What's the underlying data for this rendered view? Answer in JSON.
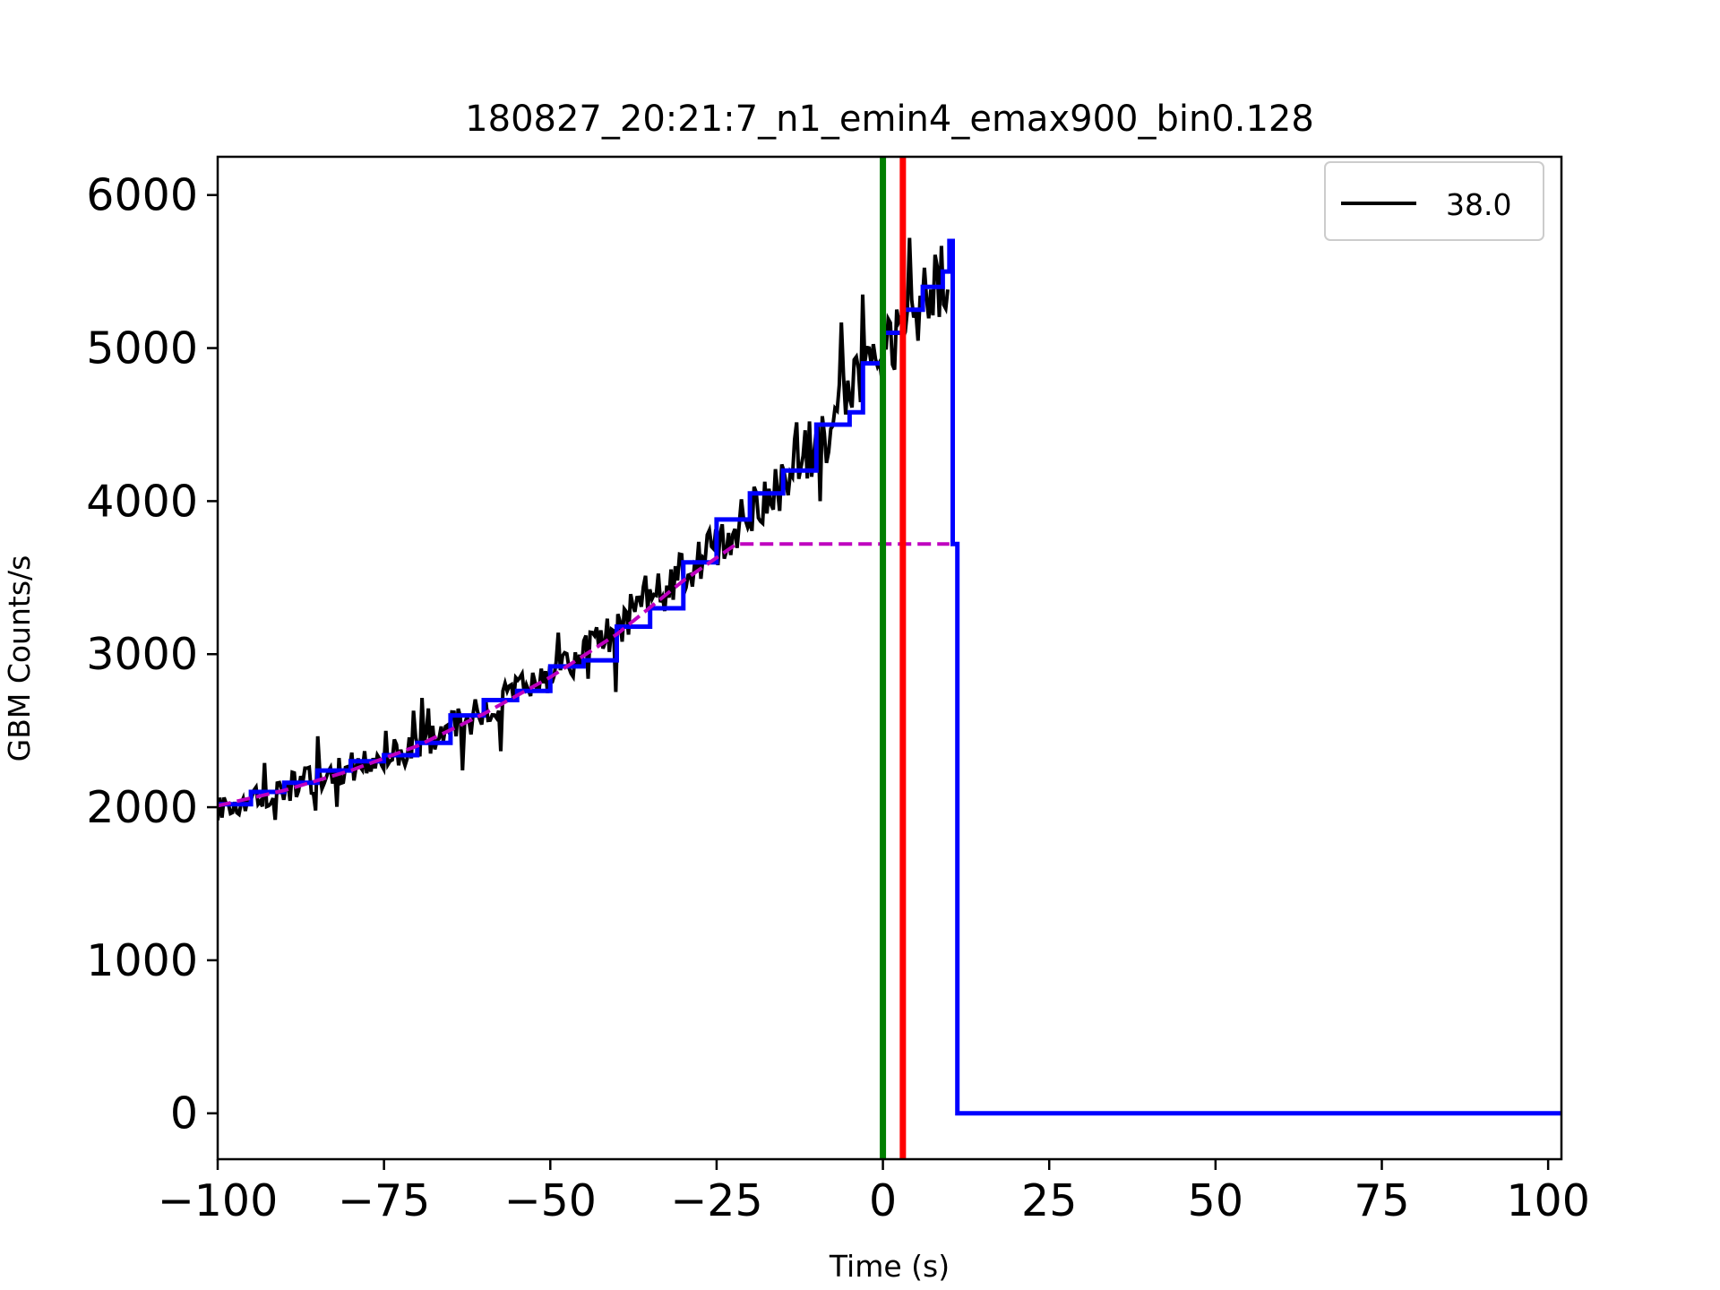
{
  "chart_data": {
    "type": "line",
    "title": "180827_20:21:7_n1_emin4_emax900_bin0.128",
    "xlabel": "Time (s)",
    "ylabel": "GBM Counts/s",
    "xlim": [
      -100,
      102
    ],
    "ylim": [
      -300,
      6250
    ],
    "xticks": [
      -100,
      -75,
      -50,
      -25,
      0,
      25,
      50,
      75,
      100
    ],
    "xtick_labels": [
      "−100",
      "−75",
      "−50",
      "−25",
      "0",
      "25",
      "50",
      "75",
      "100"
    ],
    "yticks": [
      0,
      1000,
      2000,
      3000,
      4000,
      5000,
      6000
    ],
    "ytick_labels": [
      "0",
      "1000",
      "2000",
      "3000",
      "4000",
      "5000",
      "6000"
    ],
    "legend": {
      "position": "top-right",
      "entries": [
        {
          "label": "38.0",
          "color": "#000000"
        }
      ]
    },
    "vlines": [
      {
        "x": 0,
        "color": "#007f00"
      },
      {
        "x": 3,
        "color": "#ff0000"
      }
    ],
    "series": [
      {
        "name": "38.0",
        "style": "noisy-step",
        "color": "#000000",
        "x": [
          -100,
          -90,
          -80,
          -70,
          -60,
          -50,
          -40,
          -30,
          -20,
          -10,
          0,
          5,
          10
        ],
        "y": [
          2000,
          2120,
          2260,
          2400,
          2620,
          2860,
          3150,
          3520,
          3900,
          4380,
          4980,
          5280,
          5500
        ]
      },
      {
        "name": "",
        "style": "step",
        "color": "#0000ff",
        "x": [
          -100,
          -95,
          -90,
          -85,
          -80,
          -75,
          -70,
          -65,
          -60,
          -55,
          -50,
          -45,
          -40,
          -35,
          -30,
          -25,
          -20,
          -15,
          -10,
          -5,
          -3,
          0,
          3,
          6,
          9,
          10,
          10.5,
          11,
          11.2,
          102
        ],
        "y": [
          2020,
          2100,
          2160,
          2240,
          2300,
          2340,
          2420,
          2600,
          2700,
          2760,
          2920,
          2960,
          3180,
          3300,
          3600,
          3880,
          4050,
          4200,
          4500,
          4580,
          4900,
          5100,
          5250,
          5400,
          5500,
          5700,
          3720,
          3720,
          0,
          0
        ]
      },
      {
        "name": "",
        "style": "dashed",
        "color": "#bf00bf",
        "x": [
          -100,
          -90,
          -80,
          -70,
          -60,
          -50,
          -40,
          -30,
          -22,
          -20,
          0,
          10
        ],
        "y": [
          2010,
          2110,
          2240,
          2400,
          2610,
          2850,
          3130,
          3480,
          3720,
          3720,
          3720,
          3720
        ]
      }
    ]
  }
}
